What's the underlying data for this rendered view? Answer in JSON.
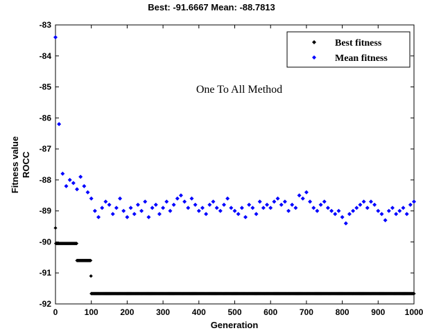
{
  "chart_data": {
    "type": "scatter",
    "title": "Best: -91.6667 Mean: -88.7813",
    "annotation": "One To All Method",
    "xlabel": "Generation",
    "ylabel": [
      "Fitness value",
      "ROCC"
    ],
    "xlim": [
      0,
      1000
    ],
    "ylim": [
      -92,
      -83
    ],
    "xticks": [
      0,
      100,
      200,
      300,
      400,
      500,
      600,
      700,
      800,
      900,
      1000
    ],
    "yticks": [
      -83,
      -84,
      -85,
      -86,
      -87,
      -88,
      -89,
      -90,
      -91,
      -92
    ],
    "grid": false,
    "legend_position": "top-right",
    "series": [
      {
        "name": "Best fitness",
        "color": "#000000",
        "marker": "diamond",
        "x_start": 0,
        "step": 1,
        "first_point": {
          "x": 0,
          "y": -89.55
        },
        "levels": [
          {
            "from": 1,
            "to": 59,
            "y": -90.05
          },
          {
            "from": 60,
            "to": 98,
            "y": -90.6
          },
          {
            "from": 99,
            "to": 99,
            "y": -91.1
          },
          {
            "from": 100,
            "to": 1000,
            "y": -91.6667
          }
        ]
      },
      {
        "name": "Mean fitness",
        "color": "#0000ff",
        "marker": "diamond",
        "x_start": 0,
        "x_step": 10,
        "values": [
          -83.4,
          -86.2,
          -87.8,
          -88.2,
          -88.0,
          -88.1,
          -88.3,
          -87.9,
          -88.2,
          -88.4,
          -88.6,
          -89.0,
          -89.2,
          -88.9,
          -88.7,
          -88.8,
          -89.1,
          -88.9,
          -88.6,
          -89.0,
          -89.2,
          -88.9,
          -89.1,
          -88.8,
          -89.0,
          -88.7,
          -89.2,
          -88.9,
          -88.8,
          -89.1,
          -88.9,
          -88.7,
          -89.0,
          -88.8,
          -88.6,
          -88.5,
          -88.7,
          -88.9,
          -88.6,
          -88.8,
          -89.0,
          -88.9,
          -89.1,
          -88.8,
          -88.7,
          -88.9,
          -89.0,
          -88.8,
          -88.6,
          -88.9,
          -89.0,
          -89.1,
          -88.9,
          -89.2,
          -88.8,
          -88.9,
          -89.1,
          -88.7,
          -88.9,
          -88.8,
          -88.9,
          -88.7,
          -88.6,
          -88.8,
          -88.7,
          -89.0,
          -88.8,
          -88.9,
          -88.5,
          -88.6,
          -88.4,
          -88.7,
          -88.9,
          -89.0,
          -88.8,
          -88.7,
          -88.9,
          -89.0,
          -89.1,
          -89.0,
          -89.2,
          -89.4,
          -89.1,
          -89.0,
          -88.9,
          -88.8,
          -88.7,
          -88.9,
          -88.7,
          -88.8,
          -89.0,
          -89.1,
          -89.3,
          -89.0,
          -88.9,
          -89.1,
          -89.0,
          -88.9,
          -89.1,
          -88.8,
          -88.7
        ]
      }
    ]
  }
}
